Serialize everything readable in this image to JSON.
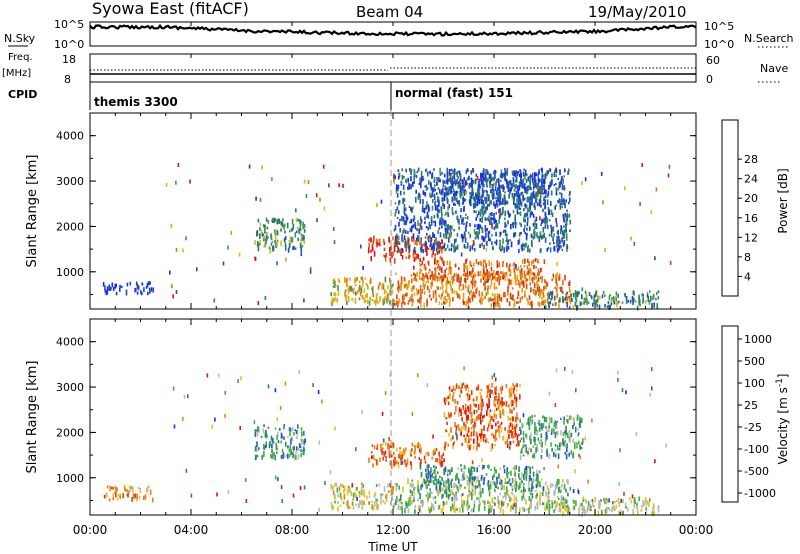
{
  "header": {
    "station": "Syowa East (fitACF)",
    "beam": "Beam 04",
    "date": "19/May/2010"
  },
  "top_panels": {
    "nsky_label": "N.Sky",
    "nsky_ticks": [
      "10^5",
      "10^0"
    ],
    "nsearch_label": "N.Search",
    "nsearch_ticks": [
      "10^5",
      "10^0"
    ],
    "freq_label": "Freq.",
    "freq_unit": "[MHz]",
    "freq_ticks": [
      "18",
      "8"
    ],
    "nave_label": "Nave",
    "nave_ticks": [
      "60",
      "0"
    ],
    "cpid_label": "CPID",
    "cpid_modes": [
      {
        "name": "themis 3300",
        "start_hour": 0
      },
      {
        "name": "normal (fast) 151",
        "start_hour": 12
      }
    ]
  },
  "chart_data": [
    {
      "type": "heatmap",
      "title": "",
      "xlabel": "",
      "ylabel": "Slant Range [km]",
      "x_range_hours": [
        0,
        24
      ],
      "ylim": [
        180,
        4500
      ],
      "y_ticks": [
        1000,
        2000,
        3000,
        4000
      ],
      "colorbar": {
        "label": "Power [dB]",
        "tick_labels": [
          "4",
          "8",
          "12",
          "16",
          "20",
          "24",
          "28"
        ],
        "colors": [
          "#1a2ee8",
          "#2050b8",
          "#2a7a6a",
          "#3a9a50",
          "#c8c020",
          "#e8a010",
          "#e07010",
          "#e04010",
          "#e01010"
        ]
      },
      "regions": [
        {
          "hours": [
            0.5,
            2.5
          ],
          "range": [
            550,
            800
          ],
          "level": 0.05
        },
        {
          "hours": [
            6.5,
            8.5
          ],
          "range": [
            1500,
            2200
          ],
          "level": 0.35
        },
        {
          "hours": [
            9.5,
            12
          ],
          "range": [
            350,
            900
          ],
          "level": 0.55
        },
        {
          "hours": [
            11,
            14
          ],
          "range": [
            1300,
            1800
          ],
          "level": 0.85
        },
        {
          "hours": [
            12,
            19
          ],
          "range": [
            300,
            1000
          ],
          "level": 0.7
        },
        {
          "hours": [
            13,
            18
          ],
          "range": [
            800,
            1300
          ],
          "level": 0.75
        },
        {
          "hours": [
            12,
            19
          ],
          "range": [
            1500,
            3300
          ],
          "level": 0.2
        },
        {
          "hours": [
            14,
            18
          ],
          "range": [
            2500,
            3300
          ],
          "level": 0.15
        },
        {
          "hours": [
            18,
            22.5
          ],
          "range": [
            250,
            600
          ],
          "level": 0.3
        }
      ]
    },
    {
      "type": "heatmap",
      "title": "",
      "xlabel": "Time UT",
      "ylabel": "Slant Range [km]",
      "x_range_hours": [
        0,
        24
      ],
      "x_tick_labels": [
        "00:00",
        "04:00",
        "08:00",
        "12:00",
        "16:00",
        "20:00",
        "00:00"
      ],
      "ylim": [
        180,
        4500
      ],
      "y_ticks": [
        1000,
        2000,
        3000,
        4000
      ],
      "colorbar": {
        "label": "Velocity [m s^-1]",
        "tick_labels": [
          "1000",
          "500",
          "100",
          "25",
          "-25",
          "-100",
          "-500",
          "-1000"
        ],
        "colors": [
          "#1a2ee8",
          "#2a5ac8",
          "#2a8a60",
          "#40b040",
          "#b8b8b8",
          "#e8c020",
          "#e88010",
          "#e04010",
          "#e01010"
        ]
      },
      "regions": [
        {
          "hours": [
            0.5,
            2.5
          ],
          "range": [
            550,
            850
          ],
          "level": 0.7
        },
        {
          "hours": [
            6.5,
            8.5
          ],
          "range": [
            1500,
            2200
          ],
          "level": 0.3
        },
        {
          "hours": [
            9.5,
            12
          ],
          "range": [
            350,
            900
          ],
          "level": 0.55
        },
        {
          "hours": [
            11,
            14
          ],
          "range": [
            1300,
            1800
          ],
          "level": 0.75
        },
        {
          "hours": [
            12,
            19
          ],
          "range": [
            300,
            1000
          ],
          "level": 0.45
        },
        {
          "hours": [
            13,
            18
          ],
          "range": [
            800,
            1300
          ],
          "level": 0.3
        },
        {
          "hours": [
            14,
            17
          ],
          "range": [
            1700,
            3100
          ],
          "level": 0.8
        },
        {
          "hours": [
            17,
            19.5
          ],
          "range": [
            1500,
            2400
          ],
          "level": 0.35
        },
        {
          "hours": [
            18,
            22.5
          ],
          "range": [
            250,
            600
          ],
          "level": 0.5
        }
      ]
    }
  ]
}
